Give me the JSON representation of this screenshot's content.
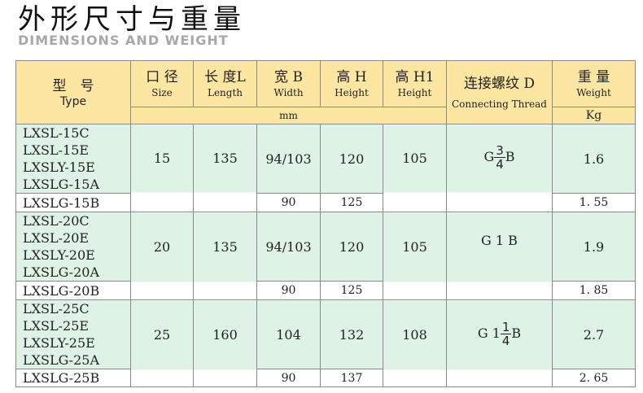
{
  "title": "外形尺寸与重量",
  "subtitle": "DIMENSIONS AND WEIGHT",
  "header": {
    "type_zh": "型　号",
    "type_en": "Type",
    "size_zh": "口 径",
    "size_en": "Size",
    "length_zh": "长 度L",
    "length_en": "Length",
    "width_zh": "宽 B",
    "width_en": "Width",
    "h_zh": "高 H",
    "h_en": "Height",
    "h1_zh": "高 H1",
    "h1_en": "Height",
    "thread_zh": "连接螺纹 D",
    "thread_en": "Connecting Thread",
    "weight_zh": "重 量",
    "weight_en": "Weight",
    "unit_mm": "mm",
    "unit_kg": "Kg"
  },
  "groups": [
    {
      "models": [
        "LXSL-15C",
        "LXSL-15E",
        "LXSLY-15E",
        "LXSLG-15A"
      ],
      "size": "15",
      "length": "135",
      "width": "94/103",
      "h": "120",
      "h1": "105",
      "thread_pre": "G",
      "thread_num": "3",
      "thread_den": "4",
      "thread_post": "B",
      "weight": "1.6",
      "b_model": "LXSLG-15B",
      "b_width": "90",
      "b_h": "125",
      "b_weight": "1. 55"
    },
    {
      "models": [
        "LXSL-20C",
        "LXSL-20E",
        "LXSLY-20E",
        "LXSLG-20A"
      ],
      "size": "20",
      "length": "135",
      "width": "94/103",
      "h": "120",
      "h1": "105",
      "thread_pre": "G 1 B",
      "weight": "1.9",
      "b_model": "LXSLG-20B",
      "b_width": "90",
      "b_h": "125",
      "b_weight": "1. 85"
    },
    {
      "models": [
        "LXSL-25C",
        "LXSL-25E",
        "LXSLY-25E",
        "LXSLG-25A"
      ],
      "size": "25",
      "length": "160",
      "width": "104",
      "h": "132",
      "h1": "108",
      "thread_pre": "G 1",
      "thread_num": "1",
      "thread_den": "4",
      "thread_post": "B",
      "weight": "2.7",
      "b_model": "LXSLG-25B",
      "b_width": "90",
      "b_h": "137",
      "b_weight": "2. 65"
    }
  ]
}
